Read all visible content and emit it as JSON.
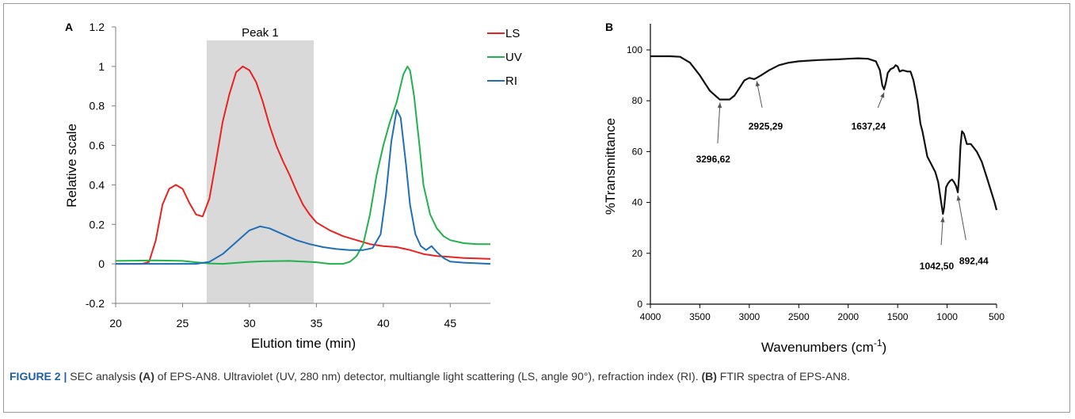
{
  "caption": {
    "label": "FIGURE 2 |",
    "p1": " SEC analysis ",
    "a": "(A)",
    "p2": " of EPS-AN8. Ultraviolet (UV, 280 nm) detector, multiangle light scattering (LS, angle 90°), refraction index (RI). ",
    "b": "(B)",
    "p3": " FTIR spectra of EPS-AN8."
  },
  "chart_data": [
    {
      "panel": "A",
      "type": "line",
      "xlabel": "Elution time (min)",
      "ylabel": "Relative scale",
      "xlim": [
        20,
        48
      ],
      "ylim": [
        -0.2,
        1.2
      ],
      "xticks": [
        20,
        25,
        30,
        35,
        40,
        45
      ],
      "yticks": [
        -0.2,
        0,
        0.2,
        0.4,
        0.6,
        0.8,
        1,
        1.2
      ],
      "ytick_labels": [
        "-0.2",
        "0",
        "0.2",
        "0.4",
        "0.6",
        "0.8",
        "1",
        "1.2"
      ],
      "grid": false,
      "legend_position": "top-right",
      "shaded_region": {
        "label": "Peak 1",
        "x": [
          26.8,
          34.8
        ],
        "color": "#d9d9d9"
      },
      "series": [
        {
          "name": "LS",
          "color": "#e8231f",
          "points": [
            [
              20,
              0
            ],
            [
              22,
              0
            ],
            [
              22.5,
              0.01
            ],
            [
              23,
              0.12
            ],
            [
              23.5,
              0.3
            ],
            [
              24,
              0.38
            ],
            [
              24.5,
              0.4
            ],
            [
              25,
              0.38
            ],
            [
              25.5,
              0.31
            ],
            [
              26,
              0.25
            ],
            [
              26.5,
              0.24
            ],
            [
              27,
              0.33
            ],
            [
              27.5,
              0.52
            ],
            [
              28,
              0.72
            ],
            [
              28.5,
              0.86
            ],
            [
              29,
              0.97
            ],
            [
              29.5,
              1.0
            ],
            [
              30,
              0.98
            ],
            [
              30.5,
              0.92
            ],
            [
              31,
              0.82
            ],
            [
              31.5,
              0.7
            ],
            [
              32,
              0.6
            ],
            [
              32.5,
              0.52
            ],
            [
              33,
              0.45
            ],
            [
              33.5,
              0.37
            ],
            [
              34,
              0.3
            ],
            [
              34.5,
              0.25
            ],
            [
              35,
              0.21
            ],
            [
              36,
              0.17
            ],
            [
              37,
              0.14
            ],
            [
              38,
              0.12
            ],
            [
              39,
              0.1
            ],
            [
              40,
              0.09
            ],
            [
              41,
              0.085
            ],
            [
              42,
              0.07
            ],
            [
              43,
              0.05
            ],
            [
              44,
              0.04
            ],
            [
              45,
              0.035
            ],
            [
              46,
              0.03
            ],
            [
              47,
              0.028
            ],
            [
              48,
              0.025
            ]
          ]
        },
        {
          "name": "UV",
          "color": "#22b14c",
          "points": [
            [
              20,
              0.015
            ],
            [
              23,
              0.018
            ],
            [
              25,
              0.015
            ],
            [
              26,
              0.008
            ],
            [
              27,
              0.002
            ],
            [
              28,
              0.0
            ],
            [
              29,
              0.005
            ],
            [
              30,
              0.01
            ],
            [
              31,
              0.013
            ],
            [
              33,
              0.015
            ],
            [
              35,
              0.008
            ],
            [
              36,
              0.0
            ],
            [
              37,
              0.0
            ],
            [
              37.5,
              0.01
            ],
            [
              38,
              0.04
            ],
            [
              38.5,
              0.1
            ],
            [
              39,
              0.25
            ],
            [
              39.5,
              0.45
            ],
            [
              40,
              0.6
            ],
            [
              40.5,
              0.72
            ],
            [
              41,
              0.82
            ],
            [
              41.5,
              0.96
            ],
            [
              41.8,
              1.0
            ],
            [
              42,
              0.98
            ],
            [
              42.3,
              0.85
            ],
            [
              42.7,
              0.6
            ],
            [
              43,
              0.4
            ],
            [
              43.5,
              0.25
            ],
            [
              44,
              0.18
            ],
            [
              44.5,
              0.14
            ],
            [
              45,
              0.12
            ],
            [
              46,
              0.105
            ],
            [
              47,
              0.1
            ],
            [
              48,
              0.1
            ]
          ]
        },
        {
          "name": "RI",
          "color": "#1f6fb5",
          "points": [
            [
              20,
              0
            ],
            [
              24,
              0
            ],
            [
              26,
              0
            ],
            [
              27,
              0.01
            ],
            [
              28,
              0.05
            ],
            [
              29,
              0.11
            ],
            [
              30,
              0.17
            ],
            [
              30.8,
              0.19
            ],
            [
              31.5,
              0.18
            ],
            [
              32.5,
              0.15
            ],
            [
              33.5,
              0.12
            ],
            [
              34.5,
              0.1
            ],
            [
              35.5,
              0.085
            ],
            [
              36.5,
              0.075
            ],
            [
              37.5,
              0.07
            ],
            [
              38.5,
              0.07
            ],
            [
              39.2,
              0.08
            ],
            [
              39.8,
              0.15
            ],
            [
              40.2,
              0.35
            ],
            [
              40.6,
              0.62
            ],
            [
              41,
              0.78
            ],
            [
              41.3,
              0.74
            ],
            [
              41.7,
              0.5
            ],
            [
              42,
              0.3
            ],
            [
              42.4,
              0.15
            ],
            [
              42.8,
              0.09
            ],
            [
              43.2,
              0.07
            ],
            [
              43.6,
              0.09
            ],
            [
              44,
              0.06
            ],
            [
              44.5,
              0.03
            ],
            [
              45,
              0.012
            ],
            [
              46,
              0.006
            ],
            [
              47,
              0.003
            ],
            [
              48,
              0.0
            ]
          ]
        }
      ]
    },
    {
      "panel": "B",
      "type": "line",
      "xlabel": "Wavenumbers (cm",
      "xlabel_sup": "-1",
      "xlabel_end": ")",
      "ylabel": "%Transmittance",
      "xlim": [
        4000,
        500
      ],
      "ylim": [
        0,
        100
      ],
      "xticks": [
        4000,
        3500,
        3000,
        2500,
        2000,
        1500,
        1000,
        500
      ],
      "yticks": [
        0,
        20,
        40,
        60,
        80,
        100
      ],
      "grid": false,
      "series": [
        {
          "name": "",
          "color": "#111111",
          "points": [
            [
              4000,
              97.5
            ],
            [
              3800,
              97.5
            ],
            [
              3700,
              97.3
            ],
            [
              3600,
              95
            ],
            [
              3500,
              90
            ],
            [
              3400,
              84
            ],
            [
              3300,
              80.5
            ],
            [
              3200,
              80.5
            ],
            [
              3150,
              82
            ],
            [
              3100,
              85
            ],
            [
              3050,
              88
            ],
            [
              3000,
              89
            ],
            [
              2950,
              88.5
            ],
            [
              2925,
              89
            ],
            [
              2880,
              90
            ],
            [
              2800,
              92
            ],
            [
              2700,
              94
            ],
            [
              2600,
              95
            ],
            [
              2500,
              95.5
            ],
            [
              2300,
              96
            ],
            [
              2100,
              96.3
            ],
            [
              2000,
              96.5
            ],
            [
              1900,
              96.7
            ],
            [
              1800,
              96.5
            ],
            [
              1720,
              95.5
            ],
            [
              1680,
              92
            ],
            [
              1655,
              86
            ],
            [
              1637,
              84.5
            ],
            [
              1620,
              87
            ],
            [
              1600,
              91
            ],
            [
              1570,
              92.5
            ],
            [
              1540,
              93
            ],
            [
              1520,
              94
            ],
            [
              1500,
              93.5
            ],
            [
              1480,
              91.5
            ],
            [
              1450,
              92
            ],
            [
              1400,
              91.5
            ],
            [
              1370,
              91.5
            ],
            [
              1340,
              88
            ],
            [
              1300,
              80
            ],
            [
              1270,
              71
            ],
            [
              1250,
              68
            ],
            [
              1230,
              64
            ],
            [
              1200,
              58
            ],
            [
              1160,
              55
            ],
            [
              1120,
              52
            ],
            [
              1090,
              48
            ],
            [
              1060,
              40
            ],
            [
              1042,
              35.5
            ],
            [
              1030,
              38
            ],
            [
              1010,
              46
            ],
            [
              990,
              47.5
            ],
            [
              970,
              48.5
            ],
            [
              950,
              49
            ],
            [
              930,
              48
            ],
            [
              910,
              46.5
            ],
            [
              892,
              44
            ],
            [
              880,
              50
            ],
            [
              865,
              62
            ],
            [
              850,
              68
            ],
            [
              830,
              67
            ],
            [
              800,
              63
            ],
            [
              780,
              63
            ],
            [
              760,
              63
            ],
            [
              740,
              62
            ],
            [
              700,
              60
            ],
            [
              650,
              56
            ],
            [
              600,
              50
            ],
            [
              560,
              45
            ],
            [
              520,
              40
            ],
            [
              500,
              37
            ]
          ]
        }
      ],
      "annotations": [
        {
          "text": "3296,62",
          "x": 3296,
          "y": 80.5
        },
        {
          "text": "2925,29",
          "x": 2925,
          "y": 89
        },
        {
          "text": "1637,24",
          "x": 1637,
          "y": 84.5
        },
        {
          "text": "1042,50",
          "x": 1042,
          "y": 35.5
        },
        {
          "text": "892,44",
          "x": 892,
          "y": 44
        }
      ]
    }
  ],
  "colors": {
    "frame_border": "#9a9a9a",
    "caption_label": "#1f5fa6"
  }
}
